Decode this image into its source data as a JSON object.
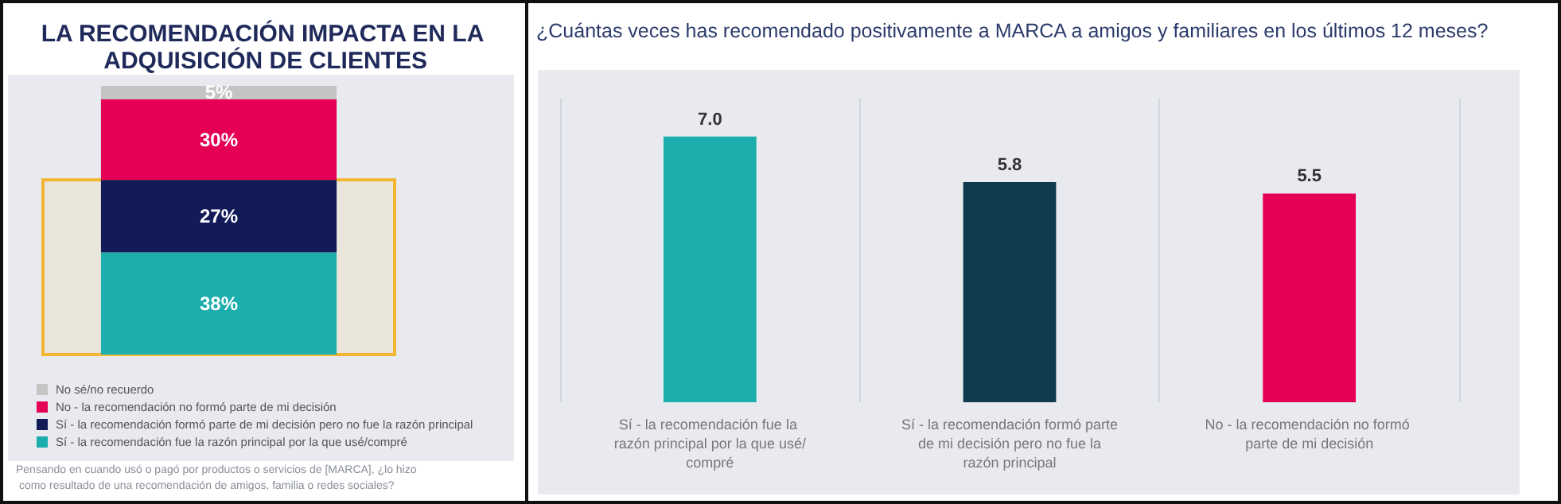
{
  "chart_data": [
    {
      "type": "bar",
      "title": "LA RECOMENDACIÓN IMPACTA EN LA ADQUISICIÓN DE CLIENTES",
      "stacked": true,
      "categories": [
        null
      ],
      "ylim": [
        0,
        100
      ],
      "series": [
        {
          "name": "Sí - la recomendación fue la razón principal por la que usé/compré",
          "color": "#1caeac",
          "values": [
            38
          ],
          "value_labels": [
            "38%"
          ]
        },
        {
          "name": "Sí - la recomendación formó parte de mi decisión pero no fue la razón principal",
          "color": "#121a57",
          "values": [
            27
          ],
          "value_labels": [
            "27%"
          ]
        },
        {
          "name": "No - la recomendación no formó parte de mi decisión",
          "color": "#e50056",
          "values": [
            30
          ],
          "value_labels": [
            "30%"
          ]
        },
        {
          "name": "No sé/no recuerdo",
          "color": "#c4c4c4",
          "values": [
            5
          ],
          "value_labels": [
            "5%"
          ]
        }
      ],
      "legend": "bottom",
      "bands": [
        {
          "axis": "y",
          "from": 0,
          "to": 65,
          "color": "#f2b632"
        }
      ],
      "annotations": [
        "Pensando en cuando usó o pagó por productos o servicios de [MARCA], ¿lo hizo como resultado de una recomendación de amigos, familia o redes sociales?"
      ]
    },
    {
      "type": "bar",
      "title": "¿Cuántas veces has recomendado positivamente a MARCA a amigos y familiares en los últimos 12 meses?",
      "categories": [
        "Sí - la recomendación fue la razón principal por la que usé/compré",
        "Sí - la recomendación formó parte de mi decisión pero no fue la razón principal",
        "No - la recomendación no formó parte de mi decisión"
      ],
      "values": [
        7.0,
        5.8,
        5.5
      ],
      "value_labels": [
        "7.0",
        "5.8",
        "5.5"
      ],
      "colors": [
        "#1caeac",
        "#0f3b4f",
        "#e50056"
      ],
      "ylim": [
        0,
        8
      ],
      "grid": "x"
    }
  ]
}
